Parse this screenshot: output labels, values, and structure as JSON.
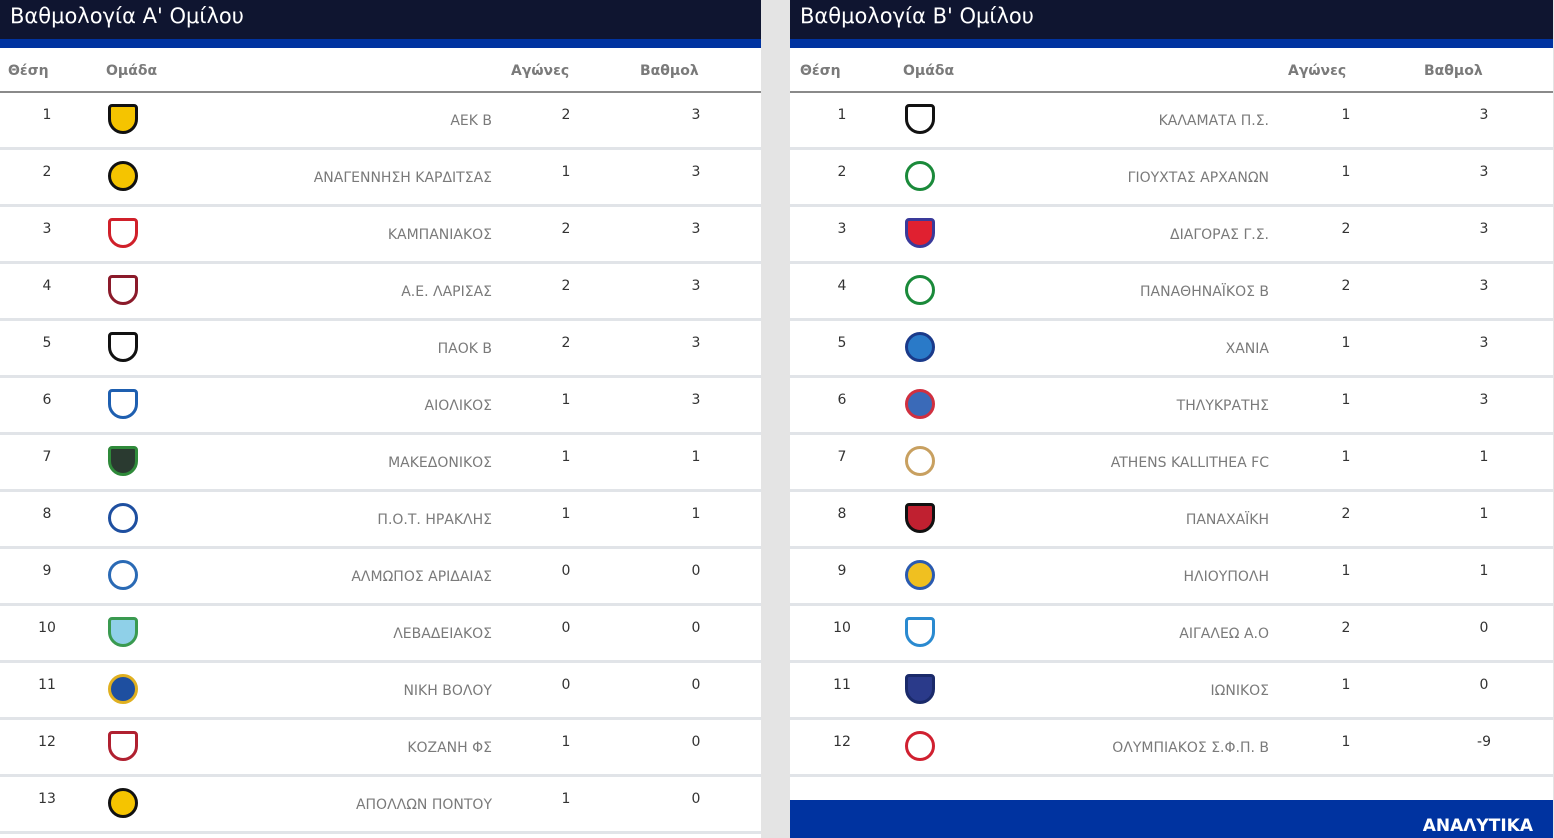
{
  "groups": [
    {
      "title": "Βαθμολογία Α' Ομίλου",
      "headers": {
        "pos": "Θέση",
        "team": "Ομάδα",
        "games": "Αγώνες",
        "points": "Βαθμολ"
      },
      "rows": [
        {
          "pos": "1",
          "team": "ΑΕΚ Β",
          "games": "2",
          "points": "3",
          "crest": [
            "#f5c400",
            "#111111"
          ],
          "shape": "shield"
        },
        {
          "pos": "2",
          "team": "ΑΝΑΓΕΝΝΗΣΗ ΚΑΡΔΙΤΣΑΣ",
          "games": "1",
          "points": "3",
          "crest": [
            "#f5c400",
            "#111111"
          ],
          "shape": "circle"
        },
        {
          "pos": "3",
          "team": "ΚΑΜΠΑΝΙΑΚΟΣ",
          "games": "2",
          "points": "3",
          "crest": [
            "#ffffff",
            "#d0202a"
          ],
          "shape": "shield"
        },
        {
          "pos": "4",
          "team": "Α.Ε. ΛΑΡΙΣΑΣ",
          "games": "2",
          "points": "3",
          "crest": [
            "#ffffff",
            "#8b1a2a"
          ],
          "shape": "shield"
        },
        {
          "pos": "5",
          "team": "ΠΑΟΚ Β",
          "games": "2",
          "points": "3",
          "crest": [
            "#ffffff",
            "#111111"
          ],
          "shape": "shield"
        },
        {
          "pos": "6",
          "team": "ΑΙΟΛΙΚΟΣ",
          "games": "1",
          "points": "3",
          "crest": [
            "#ffffff",
            "#1e5fb0"
          ],
          "shape": "shield"
        },
        {
          "pos": "7",
          "team": "ΜΑΚΕΔΟΝΙΚΟΣ",
          "games": "1",
          "points": "1",
          "crest": [
            "#2a3a30",
            "#2f8a3a"
          ],
          "shape": "shield"
        },
        {
          "pos": "8",
          "team": "Π.Ο.Τ. ΗΡΑΚΛΗΣ",
          "games": "1",
          "points": "1",
          "crest": [
            "#ffffff",
            "#1e4fa0"
          ],
          "shape": "circle"
        },
        {
          "pos": "9",
          "team": "ΑΛΜΩΠΟΣ ΑΡΙΔΑΙΑΣ",
          "games": "0",
          "points": "0",
          "crest": [
            "#ffffff",
            "#2a6ab5"
          ],
          "shape": "circle"
        },
        {
          "pos": "10",
          "team": "ΛΕΒΑΔΕΙΑΚΟΣ",
          "games": "0",
          "points": "0",
          "crest": [
            "#8fd0e8",
            "#3a9a50"
          ],
          "shape": "shield"
        },
        {
          "pos": "11",
          "team": "ΝΙΚΗ ΒΟΛΟΥ",
          "games": "0",
          "points": "0",
          "crest": [
            "#1e4fa0",
            "#e0b020"
          ],
          "shape": "circle"
        },
        {
          "pos": "12",
          "team": "ΚΟΖΑΝΗ ΦΣ",
          "games": "1",
          "points": "0",
          "crest": [
            "#ffffff",
            "#b02030"
          ],
          "shape": "shield"
        },
        {
          "pos": "13",
          "team": "ΑΠΟΛΛΩΝ ΠΟΝΤΟΥ",
          "games": "1",
          "points": "0",
          "crest": [
            "#f5c400",
            "#111111"
          ],
          "shape": "circle"
        }
      ]
    },
    {
      "title": "Βαθμολογία Β' Ομίλου",
      "headers": {
        "pos": "Θέση",
        "team": "Ομάδα",
        "games": "Αγώνες",
        "points": "Βαθμολ"
      },
      "rows": [
        {
          "pos": "1",
          "team": "ΚΑΛΑΜΑΤΑ Π.Σ.",
          "games": "1",
          "points": "3",
          "crest": [
            "#ffffff",
            "#111111"
          ],
          "shape": "shield"
        },
        {
          "pos": "2",
          "team": "ΓΙΟΥΧΤΑΣ ΑΡΧΑΝΩΝ",
          "games": "1",
          "points": "3",
          "crest": [
            "#ffffff",
            "#1a8a3a"
          ],
          "shape": "circle"
        },
        {
          "pos": "3",
          "team": "ΔΙΑΓΟΡΑΣ Γ.Σ.",
          "games": "2",
          "points": "3",
          "crest": [
            "#e02030",
            "#3a3a9a"
          ],
          "shape": "shield"
        },
        {
          "pos": "4",
          "team": "ΠΑΝΑΘΗΝΑΪΚΟΣ Β",
          "games": "2",
          "points": "3",
          "crest": [
            "#ffffff",
            "#1a8a3a"
          ],
          "shape": "circle"
        },
        {
          "pos": "5",
          "team": "ΧΑΝΙΑ",
          "games": "1",
          "points": "3",
          "crest": [
            "#2a7ac8",
            "#1a3a8a"
          ],
          "shape": "circle"
        },
        {
          "pos": "6",
          "team": "ΤΗΛΥΚΡΑΤΗΣ",
          "games": "1",
          "points": "3",
          "crest": [
            "#3a6ab8",
            "#d03040"
          ],
          "shape": "circle"
        },
        {
          "pos": "7",
          "team": "ATHENS KALLITHEA FC",
          "games": "1",
          "points": "1",
          "crest": [
            "#ffffff",
            "#c8a060"
          ],
          "shape": "circle"
        },
        {
          "pos": "8",
          "team": "ΠΑΝΑΧΑΪΚΗ",
          "games": "2",
          "points": "1",
          "crest": [
            "#c02030",
            "#111111"
          ],
          "shape": "shield"
        },
        {
          "pos": "9",
          "team": "ΗΛΙΟΥΠΟΛΗ",
          "games": "1",
          "points": "1",
          "crest": [
            "#f0c020",
            "#2a5ab0"
          ],
          "shape": "circle"
        },
        {
          "pos": "10",
          "team": "ΑΙΓΑΛΕΩ Α.Ο",
          "games": "2",
          "points": "0",
          "crest": [
            "#ffffff",
            "#2a8ad0"
          ],
          "shape": "shield"
        },
        {
          "pos": "11",
          "team": "ΙΩΝΙΚΟΣ",
          "games": "1",
          "points": "0",
          "crest": [
            "#2a3a8a",
            "#1a2a6a"
          ],
          "shape": "shield"
        },
        {
          "pos": "12",
          "team": "ΟΛΥΜΠΙΑΚΟΣ Σ.Φ.Π. Β",
          "games": "1",
          "points": "-9",
          "crest": [
            "#ffffff",
            "#d02030"
          ],
          "shape": "circle"
        }
      ],
      "more_label": "ΑΝΑΛΥΤΙΚΑ"
    }
  ],
  "colors": {
    "header_bg": "#0f1530",
    "accent": "#0033a0"
  }
}
